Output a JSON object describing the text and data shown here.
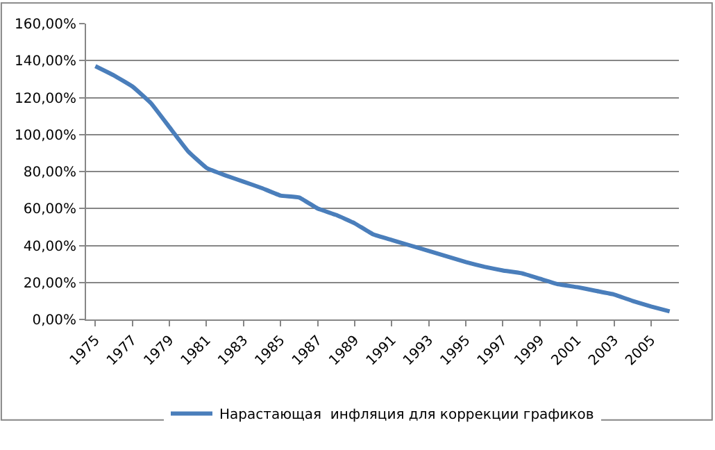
{
  "chart_data": {
    "type": "line",
    "categories": [
      "1975",
      null,
      "1977",
      null,
      "1979",
      null,
      "1981",
      null,
      "1983",
      null,
      "1985",
      null,
      "1987",
      null,
      "1989",
      null,
      "1991",
      null,
      "1993",
      null,
      "1995",
      null,
      "1997",
      null,
      "1999",
      null,
      "2001",
      null,
      "2003",
      null,
      "2005",
      null
    ],
    "series": [
      {
        "name": "Нарастающая  инфляция для коррекции графиков",
        "color": "#4a7ebb",
        "values": [
          137,
          132,
          126,
          117,
          104,
          91,
          82,
          78,
          74.5,
          71,
          67,
          66,
          60,
          56.5,
          52,
          46,
          43,
          40,
          37,
          34,
          31,
          28.5,
          26.5,
          25,
          22,
          19,
          17.5,
          15.5,
          13.5,
          10,
          7,
          4.4
        ]
      }
    ],
    "ylim": [
      0,
      160
    ],
    "yticks": [
      {
        "value": 0,
        "label": "0,00%"
      },
      {
        "value": 20,
        "label": "20,00%"
      },
      {
        "value": 40,
        "label": "40,00%"
      },
      {
        "value": 60,
        "label": "60,00%"
      },
      {
        "value": 80,
        "label": "80,00%"
      },
      {
        "value": 100,
        "label": "100,00%"
      },
      {
        "value": 120,
        "label": "120,00%"
      },
      {
        "value": 140,
        "label": "140,00%"
      },
      {
        "value": 160,
        "label": "160,00%"
      }
    ],
    "grid": "y",
    "legend": "bottom",
    "marker": "none",
    "line_style": "solid"
  }
}
